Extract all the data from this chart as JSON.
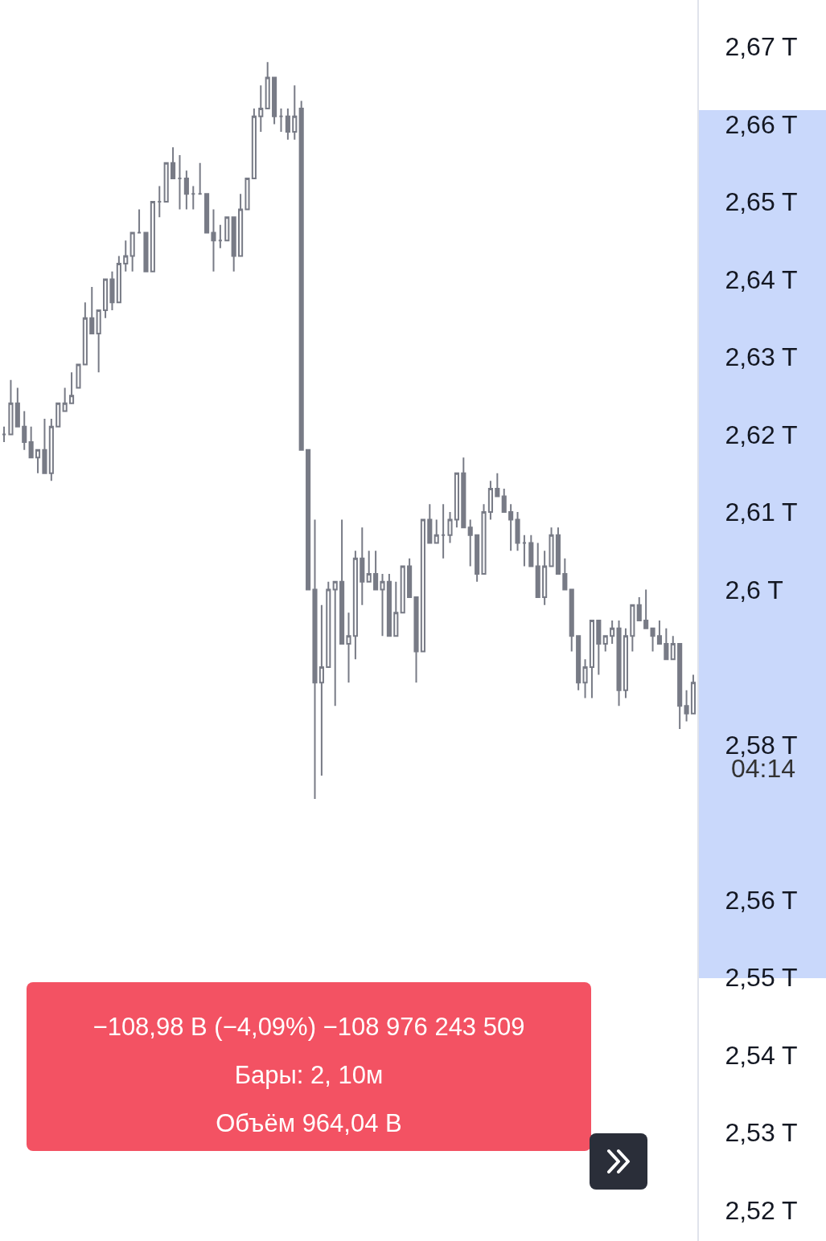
{
  "chart_data": {
    "type": "candlestick",
    "categories": [
      null,
      null,
      null,
      null,
      null,
      null,
      null,
      null,
      null,
      null,
      null,
      null,
      null,
      null,
      null,
      null,
      null,
      null,
      null,
      null,
      null,
      null,
      null,
      null,
      null,
      null,
      null,
      null,
      null,
      null,
      null,
      null,
      null,
      null,
      null,
      null,
      null,
      null,
      null,
      null,
      null,
      null,
      null,
      null,
      null,
      null,
      null,
      null,
      null,
      null,
      null,
      null,
      null,
      null,
      null,
      null,
      null,
      null,
      null,
      null,
      null,
      null,
      null,
      null,
      null,
      null,
      null,
      null,
      null,
      null,
      null,
      null,
      null,
      null,
      null,
      null,
      null,
      null,
      null,
      null,
      null,
      null,
      null,
      null,
      null,
      null,
      null,
      null,
      null,
      null,
      null,
      null,
      null,
      null,
      null,
      null,
      null,
      null,
      null,
      null,
      null,
      null,
      null
    ],
    "ohlc": [
      [
        2.62,
        2.621,
        2.619,
        2.62
      ],
      [
        2.62,
        2.627,
        2.62,
        2.624
      ],
      [
        2.624,
        2.626,
        2.621,
        2.621
      ],
      [
        2.621,
        2.623,
        2.618,
        2.619
      ],
      [
        2.619,
        2.621,
        2.617,
        2.617
      ],
      [
        2.617,
        2.618,
        2.615,
        2.618
      ],
      [
        2.618,
        2.622,
        2.615,
        2.615
      ],
      [
        2.615,
        2.622,
        2.614,
        2.621
      ],
      [
        2.621,
        2.624,
        2.621,
        2.624
      ],
      [
        2.623,
        2.626,
        2.623,
        2.624
      ],
      [
        2.624,
        2.628,
        2.624,
        2.625
      ],
      [
        2.626,
        2.629,
        2.626,
        2.629
      ],
      [
        2.629,
        2.637,
        2.629,
        2.635
      ],
      [
        2.635,
        2.639,
        2.633,
        2.633
      ],
      [
        2.633,
        2.636,
        2.628,
        2.636
      ],
      [
        2.636,
        2.64,
        2.635,
        2.64
      ],
      [
        2.64,
        2.641,
        2.636,
        2.637
      ],
      [
        2.637,
        2.643,
        2.637,
        2.642
      ],
      [
        2.642,
        2.645,
        2.641,
        2.643
      ],
      [
        2.643,
        2.646,
        2.641,
        2.646
      ],
      [
        2.646,
        2.649,
        2.646,
        2.646
      ],
      [
        2.646,
        2.646,
        2.641,
        2.641
      ],
      [
        2.641,
        2.65,
        2.641,
        2.65
      ],
      [
        2.65,
        2.652,
        2.648,
        2.65
      ],
      [
        2.65,
        2.655,
        2.65,
        2.655
      ],
      [
        2.655,
        2.657,
        2.653,
        2.653
      ],
      [
        2.653,
        2.656,
        2.649,
        2.653
      ],
      [
        2.653,
        2.654,
        2.649,
        2.651
      ],
      [
        2.651,
        2.652,
        2.649,
        2.651
      ],
      [
        2.651,
        2.655,
        2.651,
        2.651
      ],
      [
        2.651,
        2.651,
        2.646,
        2.646
      ],
      [
        2.646,
        2.649,
        2.641,
        2.645
      ],
      [
        2.645,
        2.647,
        2.644,
        2.645
      ],
      [
        2.645,
        2.648,
        2.645,
        2.648
      ],
      [
        2.648,
        2.648,
        2.641,
        2.643
      ],
      [
        2.643,
        2.651,
        2.643,
        2.649
      ],
      [
        2.649,
        2.653,
        2.649,
        2.653
      ],
      [
        2.653,
        2.662,
        2.653,
        2.661
      ],
      [
        2.661,
        2.665,
        2.659,
        2.662
      ],
      [
        2.662,
        2.668,
        2.662,
        2.666
      ],
      [
        2.666,
        2.666,
        2.66,
        2.661
      ],
      [
        2.661,
        2.662,
        2.659,
        2.661
      ],
      [
        2.661,
        2.662,
        2.658,
        2.659
      ],
      [
        2.659,
        2.665,
        2.658,
        2.661
      ],
      [
        2.662,
        2.663,
        2.618,
        2.618
      ],
      [
        2.618,
        2.618,
        2.6,
        2.6
      ],
      [
        2.6,
        2.609,
        2.573,
        2.588
      ],
      [
        2.588,
        2.598,
        2.576,
        2.59
      ],
      [
        2.59,
        2.601,
        2.59,
        2.6
      ],
      [
        2.6,
        2.601,
        2.585,
        2.601
      ],
      [
        2.601,
        2.609,
        2.593,
        2.593
      ],
      [
        2.593,
        2.597,
        2.588,
        2.594
      ],
      [
        2.594,
        2.605,
        2.591,
        2.604
      ],
      [
        2.604,
        2.608,
        2.598,
        2.601
      ],
      [
        2.601,
        2.605,
        2.601,
        2.602
      ],
      [
        2.602,
        2.605,
        2.6,
        2.6
      ],
      [
        2.6,
        2.602,
        2.594,
        2.601
      ],
      [
        2.601,
        2.602,
        2.594,
        2.594
      ],
      [
        2.594,
        2.601,
        2.594,
        2.597
      ],
      [
        2.597,
        2.603,
        2.597,
        2.603
      ],
      [
        2.603,
        2.604,
        2.599,
        2.599
      ],
      [
        2.599,
        2.599,
        2.588,
        2.592
      ],
      [
        2.592,
        2.609,
        2.592,
        2.609
      ],
      [
        2.609,
        2.611,
        2.606,
        2.606
      ],
      [
        2.606,
        2.609,
        2.606,
        2.607
      ],
      [
        2.607,
        2.611,
        2.604,
        2.607
      ],
      [
        2.607,
        2.61,
        2.606,
        2.609
      ],
      [
        2.609,
        2.615,
        2.608,
        2.615
      ],
      [
        2.615,
        2.617,
        2.608,
        2.608
      ],
      [
        2.608,
        2.609,
        2.603,
        2.607
      ],
      [
        2.607,
        2.607,
        2.601,
        2.602
      ],
      [
        2.602,
        2.611,
        2.602,
        2.61
      ],
      [
        2.61,
        2.614,
        2.609,
        2.613
      ],
      [
        2.613,
        2.615,
        2.612,
        2.612
      ],
      [
        2.612,
        2.613,
        2.61,
        2.61
      ],
      [
        2.61,
        2.611,
        2.605,
        2.609
      ],
      [
        2.609,
        2.61,
        2.605,
        2.606
      ],
      [
        2.606,
        2.607,
        2.603,
        2.606
      ],
      [
        2.606,
        2.607,
        2.603,
        2.603
      ],
      [
        2.603,
        2.606,
        2.599,
        2.599
      ],
      [
        2.599,
        2.605,
        2.598,
        2.603
      ],
      [
        2.603,
        2.608,
        2.603,
        2.607
      ],
      [
        2.607,
        2.608,
        2.602,
        2.602
      ],
      [
        2.602,
        2.604,
        2.6,
        2.6
      ],
      [
        2.6,
        2.6,
        2.592,
        2.594
      ],
      [
        2.594,
        2.594,
        2.587,
        2.588
      ],
      [
        2.588,
        2.591,
        2.586,
        2.59
      ],
      [
        2.59,
        2.596,
        2.586,
        2.596
      ],
      [
        2.596,
        2.596,
        2.589,
        2.593
      ],
      [
        2.593,
        2.594,
        2.592,
        2.594
      ],
      [
        2.594,
        2.596,
        2.593,
        2.595
      ],
      [
        2.595,
        2.596,
        2.585,
        2.587
      ],
      [
        2.587,
        2.595,
        2.586,
        2.594
      ],
      [
        2.594,
        2.598,
        2.592,
        2.598
      ],
      [
        2.598,
        2.599,
        2.596,
        2.596
      ],
      [
        2.596,
        2.6,
        2.595,
        2.595
      ],
      [
        2.595,
        2.595,
        2.592,
        2.594
      ],
      [
        2.594,
        2.596,
        2.593,
        2.593
      ],
      [
        2.593,
        2.595,
        2.591,
        2.591
      ],
      [
        2.591,
        2.594,
        2.591,
        2.593
      ],
      [
        2.593,
        2.593,
        2.582,
        2.585
      ],
      [
        2.585,
        2.587,
        2.583,
        2.584
      ],
      [
        2.584,
        2.589,
        2.584,
        2.588
      ]
    ],
    "ylim": [
      2.516,
      2.676
    ],
    "yticks": [
      {
        "value": 2.67,
        "label": "2,67 T"
      },
      {
        "value": 2.66,
        "label": "2,66 T"
      },
      {
        "value": 2.65,
        "label": "2,65 T"
      },
      {
        "value": 2.64,
        "label": "2,64 T"
      },
      {
        "value": 2.63,
        "label": "2,63 T"
      },
      {
        "value": 2.62,
        "label": "2,62 T"
      },
      {
        "value": 2.61,
        "label": "2,61 T"
      },
      {
        "value": 2.6,
        "label": "2,6 T"
      },
      {
        "value": 2.58,
        "label": "2,58 T"
      },
      {
        "value": 2.56,
        "label": "2,56 T"
      },
      {
        "value": 2.55,
        "label": "2,55 T"
      },
      {
        "value": 2.54,
        "label": "2,54 T"
      },
      {
        "value": 2.53,
        "label": "2,53 T"
      },
      {
        "value": 2.52,
        "label": "2,52 T"
      }
    ],
    "tick_labels": "y",
    "annotations": [
      "−108,98 B (−4,09%) −108 976 243 509",
      "Бары: 2, 10м",
      "Объём 964,04 B",
      "04:14"
    ]
  }
}
